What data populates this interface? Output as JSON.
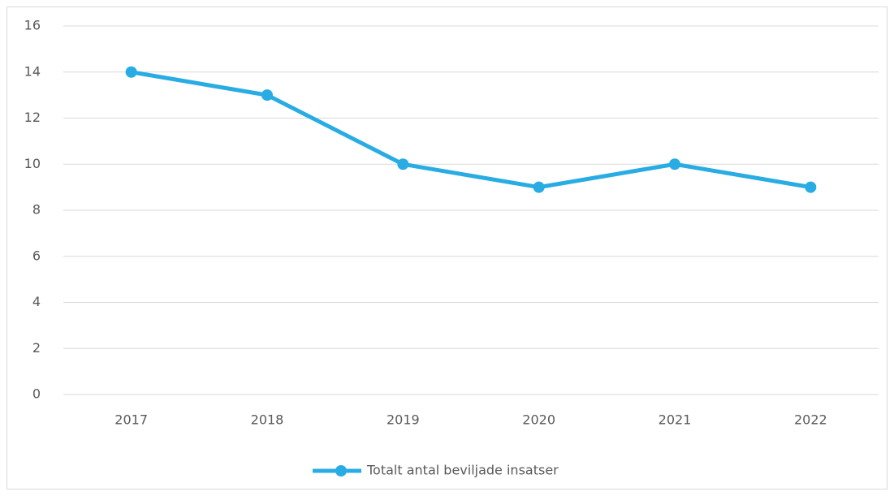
{
  "chart_data": {
    "type": "line",
    "categories": [
      "2017",
      "2018",
      "2019",
      "2020",
      "2021",
      "2022"
    ],
    "series": [
      {
        "name": "Totalt antal beviljade insatser",
        "color": "#29ace3",
        "values": [
          14,
          13,
          10,
          9,
          10,
          9
        ]
      }
    ],
    "ylim": [
      0,
      16
    ],
    "yticks": [
      0,
      2,
      4,
      6,
      8,
      10,
      12,
      14,
      16
    ],
    "grid": true,
    "legend": "bottom"
  }
}
